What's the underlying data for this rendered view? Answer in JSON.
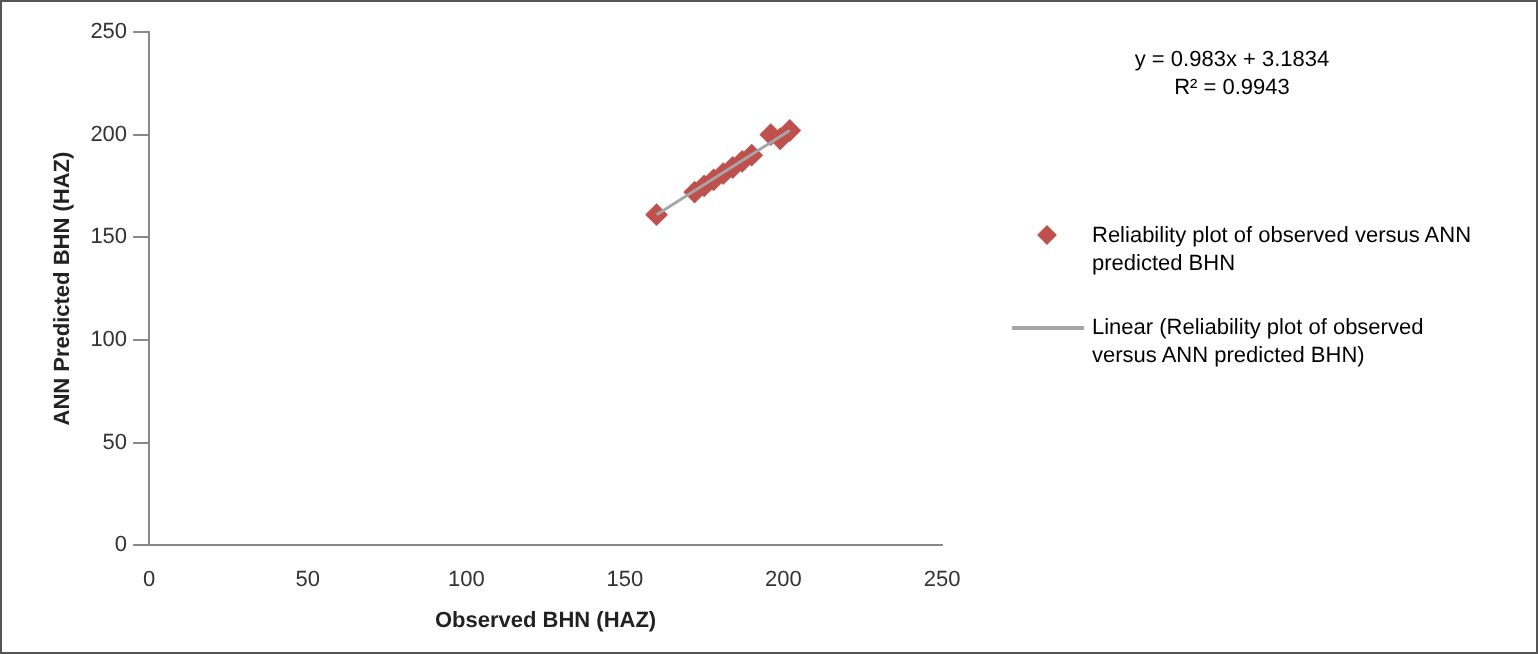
{
  "chart_data": {
    "type": "scatter",
    "xlabel": "Observed BHN (HAZ)",
    "ylabel": "ANN Predicted BHN (HAZ)",
    "xlim": [
      0,
      250
    ],
    "xticks": [
      0,
      50,
      100,
      150,
      200,
      250
    ],
    "ylim": [
      0,
      250
    ],
    "yticks": [
      0,
      50,
      100,
      150,
      200,
      250
    ],
    "marker": "diamond",
    "legend": "right",
    "grid": false,
    "annotations": [
      "y = 0.983x + 3.1834",
      "R² = 0.9943"
    ],
    "series": [
      {
        "name": "Reliability plot of observed versus ANN predicted BHN",
        "color": "#c0504d",
        "x": [
          160,
          172,
          175,
          178,
          181,
          184,
          187,
          190,
          196,
          199,
          202
        ],
        "values": [
          161,
          172,
          175,
          178,
          181,
          184,
          187,
          190,
          200,
          198,
          202
        ]
      },
      {
        "name": "Linear (Reliability plot of observed versus ANN predicted BHN)",
        "type": "line",
        "color": "#a6a6a6",
        "x": [
          160,
          202
        ],
        "values": [
          161,
          202
        ],
        "marker": "none"
      }
    ]
  }
}
